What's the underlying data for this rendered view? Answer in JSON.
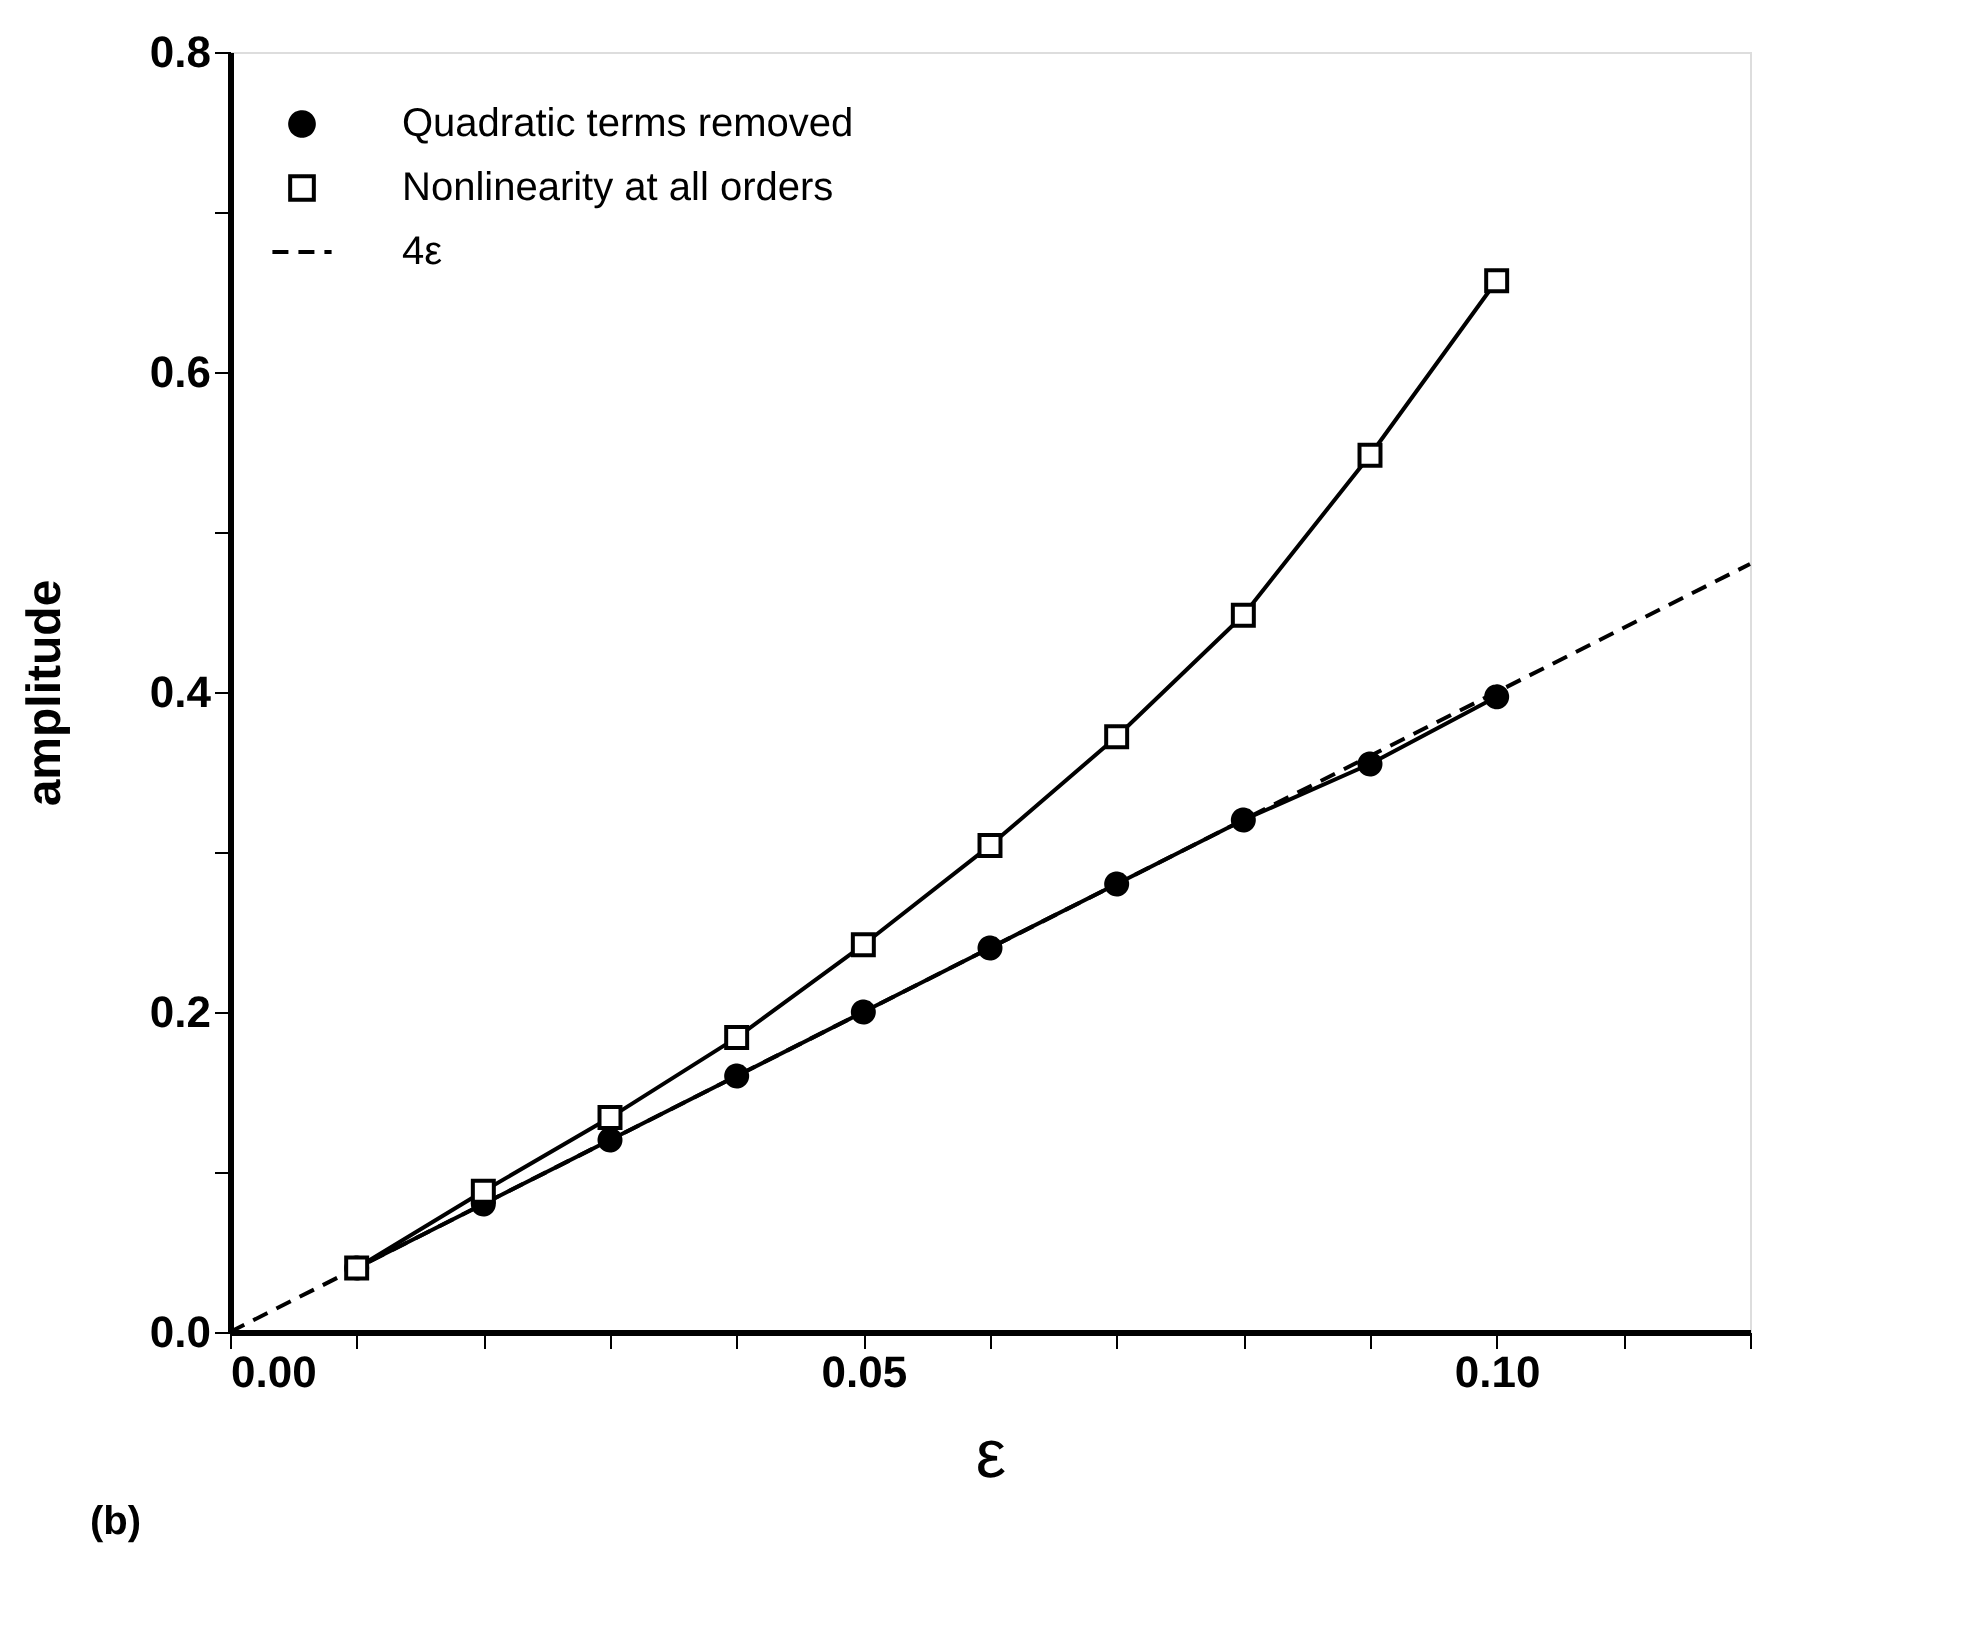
{
  "chart_data": {
    "type": "line",
    "xlabel": "ε",
    "ylabel": "amplitude",
    "x": [
      0.01,
      0.02,
      0.03,
      0.04,
      0.05,
      0.06,
      0.07,
      0.08,
      0.09,
      0.1
    ],
    "series": [
      {
        "name": "Quadratic terms removed",
        "color": "#000000",
        "marker": "circle",
        "line_style": "solid",
        "values": [
          0.04,
          0.08,
          0.12,
          0.16,
          0.2,
          0.24,
          0.28,
          0.32,
          0.355,
          0.397
        ]
      },
      {
        "name": "Nonlinearity at all orders",
        "color": "#000000",
        "marker": "square",
        "line_style": "solid",
        "values": [
          0.04,
          0.088,
          0.134,
          0.184,
          0.242,
          0.304,
          0.372,
          0.448,
          0.548,
          0.657
        ]
      },
      {
        "name": "4ε",
        "color": "#000000",
        "marker": "none",
        "line_style": "dashed",
        "x": [
          0,
          0.12
        ],
        "values": [
          0,
          0.48
        ]
      }
    ],
    "xlim": [
      0,
      0.12
    ],
    "ylim": [
      0,
      0.8
    ],
    "xticks": [
      {
        "value": 0,
        "label": "0.00"
      },
      {
        "value": 0.01,
        "label": null
      },
      {
        "value": 0.02,
        "label": null
      },
      {
        "value": 0.03,
        "label": null
      },
      {
        "value": 0.04,
        "label": null
      },
      {
        "value": 0.05,
        "label": "0.05"
      },
      {
        "value": 0.06,
        "label": null
      },
      {
        "value": 0.07,
        "label": null
      },
      {
        "value": 0.08,
        "label": null
      },
      {
        "value": 0.09,
        "label": null
      },
      {
        "value": 0.1,
        "label": "0.10"
      },
      {
        "value": 0.11,
        "label": null
      },
      {
        "value": 0.12,
        "label": null
      }
    ],
    "yticks": [
      {
        "value": 0,
        "label": "0.0"
      },
      {
        "value": 0.1,
        "label": null
      },
      0.2,
      {
        "value": 0.3,
        "label": null
      },
      0.4,
      {
        "value": 0.5,
        "label": null
      },
      0.6,
      {
        "value": 0.7,
        "label": null
      },
      0.8
    ],
    "grid": false,
    "legend": "top left",
    "annotations": [
      "(b)"
    ]
  }
}
